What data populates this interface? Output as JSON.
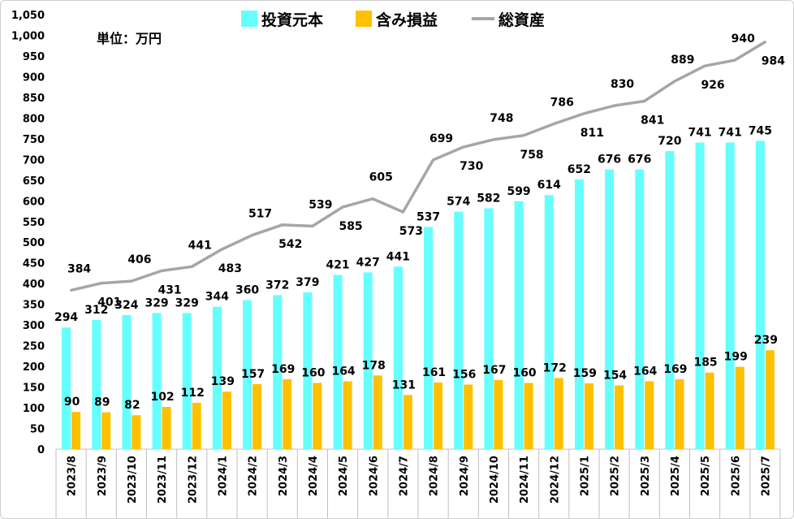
{
  "chart_data": {
    "type": "bar",
    "unit_label": "単位：万円",
    "categories": [
      "2023/8",
      "2023/9",
      "2023/10",
      "2023/11",
      "2023/12",
      "2024/1",
      "2024/2",
      "2024/3",
      "2024/4",
      "2024/5",
      "2024/6",
      "2024/7",
      "2024/8",
      "2024/9",
      "2024/10",
      "2024/11",
      "2024/12",
      "2025/1",
      "2025/2",
      "2025/3",
      "2025/4",
      "2025/5",
      "2025/6",
      "2025/7"
    ],
    "ylim": [
      0,
      1050
    ],
    "yticks": [
      0,
      50,
      100,
      150,
      200,
      250,
      300,
      350,
      400,
      450,
      500,
      550,
      600,
      650,
      700,
      750,
      800,
      850,
      900,
      950,
      1000,
      1050
    ],
    "ytick_labels": [
      "0",
      "50",
      "100",
      "150",
      "200",
      "250",
      "300",
      "350",
      "400",
      "450",
      "500",
      "550",
      "600",
      "650",
      "700",
      "750",
      "800",
      "850",
      "900",
      "950",
      "1,000",
      "1,050"
    ],
    "grid": false,
    "legend_position": "top",
    "series": [
      {
        "name": "投資元本",
        "kind": "bar",
        "color": "#66ffff",
        "values": [
          294,
          312,
          324,
          329,
          329,
          344,
          360,
          372,
          379,
          421,
          427,
          441,
          537,
          574,
          582,
          599,
          614,
          652,
          676,
          676,
          720,
          741,
          741,
          745
        ]
      },
      {
        "name": "含み損益",
        "kind": "bar",
        "color": "#ffc000",
        "values": [
          90,
          89,
          82,
          102,
          112,
          139,
          157,
          169,
          160,
          164,
          178,
          131,
          161,
          156,
          167,
          160,
          172,
          159,
          154,
          164,
          169,
          185,
          199,
          239
        ]
      },
      {
        "name": "総資産",
        "kind": "line",
        "color": "#a6a6a6",
        "values": [
          384,
          401,
          406,
          431,
          441,
          483,
          517,
          542,
          539,
          585,
          605,
          573,
          699,
          730,
          748,
          758,
          786,
          811,
          830,
          841,
          889,
          926,
          940,
          984
        ]
      }
    ]
  }
}
